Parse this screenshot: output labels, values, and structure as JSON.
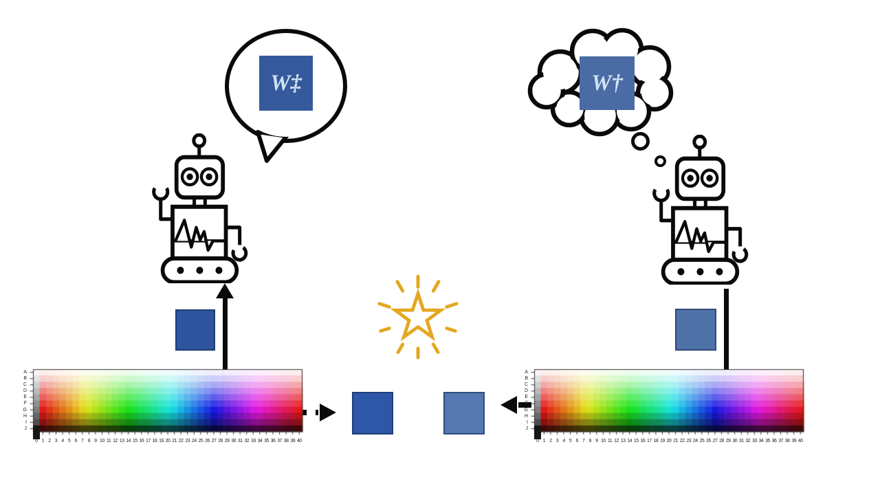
{
  "left_agent": {
    "bubble_type": "speech",
    "weight_label": "W‡"
  },
  "right_agent": {
    "bubble_type": "thought",
    "weight_label": "W†"
  },
  "colors": {
    "ink": "#0a0a0a",
    "star": "#e3a820",
    "glyph": "#cfe2f3",
    "sq_bubble_left": "#35599b",
    "sq_bubble_right": "#4a6ba3",
    "sq_sample_left": "#2e55a0",
    "sq_sample_right": "#4f72a8",
    "sq_mid_left": "#2e57a8",
    "sq_mid_right": "#5578b0"
  },
  "palette": {
    "row_labels": [
      "A",
      "B",
      "C",
      "D",
      "E",
      "F",
      "G",
      "H",
      "I",
      "J"
    ],
    "col_labels": [
      "0",
      "1",
      "2",
      "3",
      "4",
      "5",
      "6",
      "7",
      "8",
      "9",
      "10",
      "11",
      "12",
      "13",
      "14",
      "15",
      "16",
      "17",
      "18",
      "19",
      "20",
      "21",
      "22",
      "23",
      "24",
      "25",
      "26",
      "27",
      "28",
      "29",
      "30",
      "31",
      "32",
      "33",
      "34",
      "35",
      "36",
      "37",
      "38",
      "39",
      "40"
    ],
    "row_lightness": [
      96,
      89,
      81,
      73,
      65,
      57,
      49,
      40,
      30,
      14
    ],
    "saturation": 80,
    "axis_color": "#333333"
  }
}
